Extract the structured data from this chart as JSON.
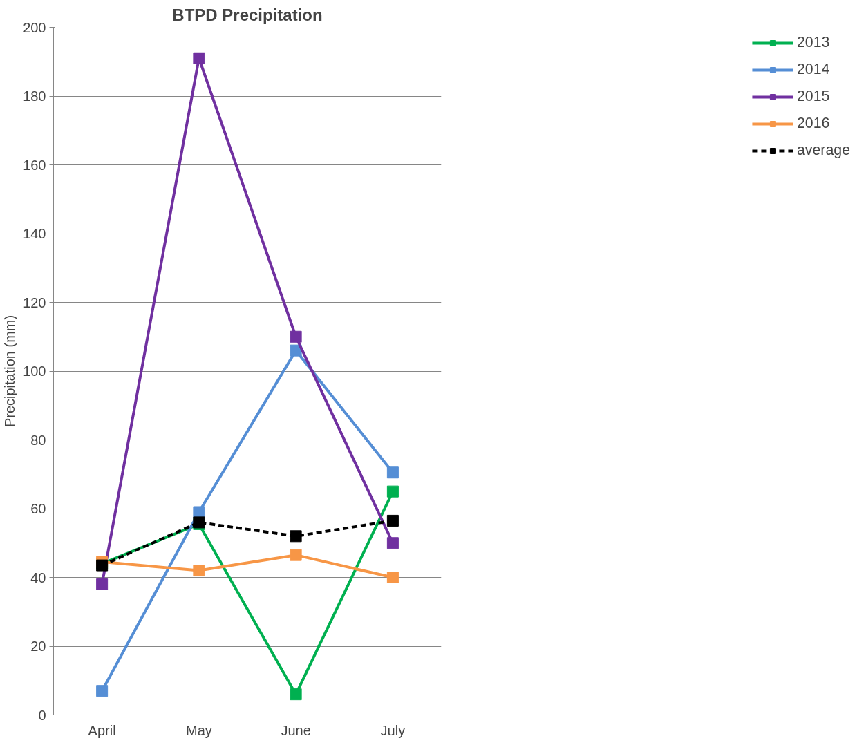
{
  "chart_data": {
    "type": "line",
    "title": "BTPD Precipitation",
    "ylabel": "Precipitation (mm)",
    "categories": [
      "April",
      "May",
      "June",
      "July"
    ],
    "series": [
      {
        "name": "2013",
        "color": "#00b050",
        "values": [
          44,
          55.5,
          6,
          65
        ]
      },
      {
        "name": "2014",
        "color": "#558ed5",
        "values": [
          7,
          59,
          106,
          70.5
        ]
      },
      {
        "name": "2015",
        "color": "#7030a0",
        "values": [
          38,
          191,
          110,
          50
        ]
      },
      {
        "name": "2016",
        "color": "#f79646",
        "values": [
          44.5,
          42,
          46.5,
          40
        ]
      },
      {
        "name": "average",
        "color": "#000000",
        "values": [
          43.5,
          56,
          52,
          56.5
        ],
        "line_style": "dashed"
      }
    ],
    "ylim": [
      0,
      200
    ],
    "yticks": [
      0,
      20,
      40,
      60,
      80,
      100,
      120,
      140,
      160,
      180,
      200
    ],
    "grid": "y",
    "legend": "right",
    "marker": "square",
    "line_style": "solid"
  }
}
